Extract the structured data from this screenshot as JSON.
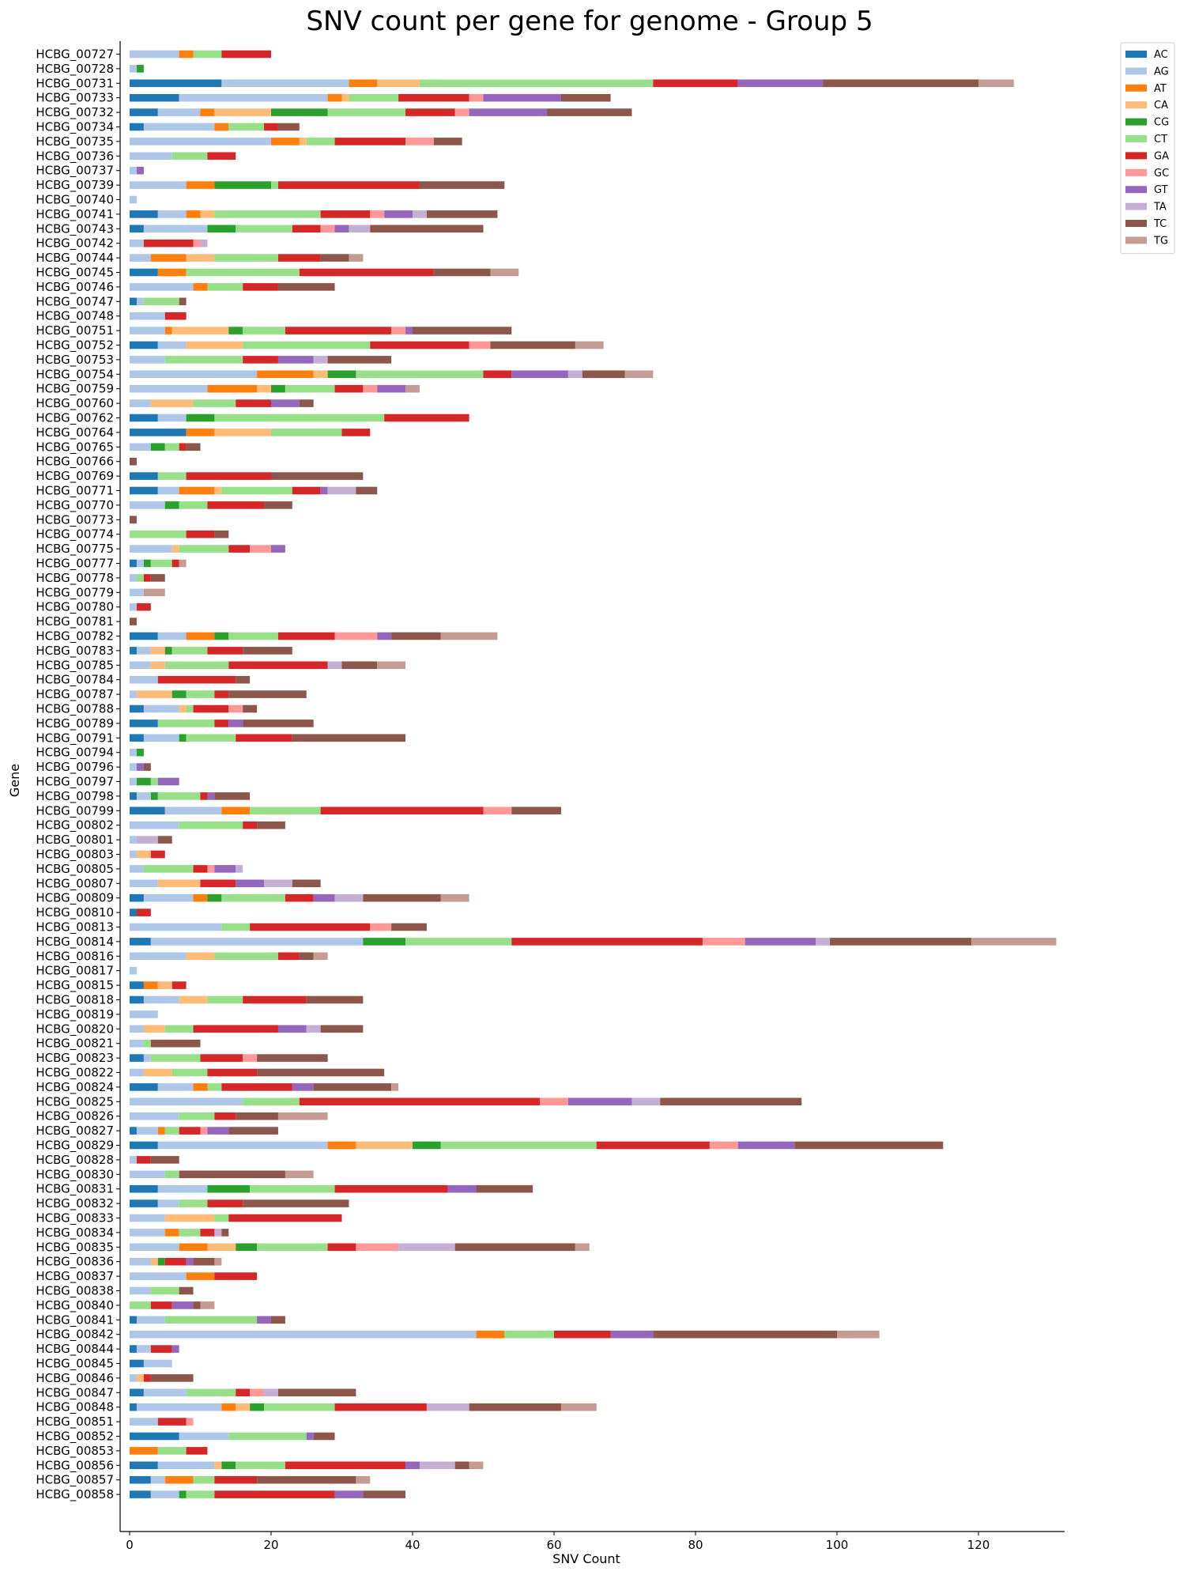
{
  "chart_data": {
    "type": "bar",
    "orientation": "horizontal",
    "stacked": true,
    "title": "SNV count per gene for genome - Group 5",
    "xlabel": "SNV Count",
    "ylabel": "Gene",
    "xlim": [
      -1.2,
      132.3
    ],
    "xticks": [
      0,
      20,
      40,
      60,
      80,
      100,
      120
    ],
    "legend_position": "upper right, outside plot",
    "grid": false,
    "series": [
      {
        "name": "AC",
        "color": "#1f77b4"
      },
      {
        "name": "AG",
        "color": "#aec7e8"
      },
      {
        "name": "AT",
        "color": "#ff7f0e"
      },
      {
        "name": "CA",
        "color": "#ffbb78"
      },
      {
        "name": "CG",
        "color": "#2ca02c"
      },
      {
        "name": "CT",
        "color": "#98df8a"
      },
      {
        "name": "GA",
        "color": "#d62728"
      },
      {
        "name": "GC",
        "color": "#ff9896"
      },
      {
        "name": "GT",
        "color": "#9467bd"
      },
      {
        "name": "TA",
        "color": "#c5b0d5"
      },
      {
        "name": "TC",
        "color": "#8c564b"
      },
      {
        "name": "TG",
        "color": "#c49c94"
      }
    ],
    "categories": [
      "HCBG_00727",
      "HCBG_00728",
      "HCBG_00731",
      "HCBG_00733",
      "HCBG_00732",
      "HCBG_00734",
      "HCBG_00735",
      "HCBG_00736",
      "HCBG_00737",
      "HCBG_00739",
      "HCBG_00740",
      "HCBG_00741",
      "HCBG_00743",
      "HCBG_00742",
      "HCBG_00744",
      "HCBG_00745",
      "HCBG_00746",
      "HCBG_00747",
      "HCBG_00748",
      "HCBG_00751",
      "HCBG_00752",
      "HCBG_00753",
      "HCBG_00754",
      "HCBG_00759",
      "HCBG_00760",
      "HCBG_00762",
      "HCBG_00764",
      "HCBG_00765",
      "HCBG_00766",
      "HCBG_00769",
      "HCBG_00771",
      "HCBG_00770",
      "HCBG_00773",
      "HCBG_00774",
      "HCBG_00775",
      "HCBG_00777",
      "HCBG_00778",
      "HCBG_00779",
      "HCBG_00780",
      "HCBG_00781",
      "HCBG_00782",
      "HCBG_00783",
      "HCBG_00785",
      "HCBG_00784",
      "HCBG_00787",
      "HCBG_00788",
      "HCBG_00789",
      "HCBG_00791",
      "HCBG_00794",
      "HCBG_00796",
      "HCBG_00797",
      "HCBG_00798",
      "HCBG_00799",
      "HCBG_00802",
      "HCBG_00801",
      "HCBG_00803",
      "HCBG_00805",
      "HCBG_00807",
      "HCBG_00809",
      "HCBG_00810",
      "HCBG_00813",
      "HCBG_00814",
      "HCBG_00816",
      "HCBG_00817",
      "HCBG_00815",
      "HCBG_00818",
      "HCBG_00819",
      "HCBG_00820",
      "HCBG_00821",
      "HCBG_00823",
      "HCBG_00822",
      "HCBG_00824",
      "HCBG_00825",
      "HCBG_00826",
      "HCBG_00827",
      "HCBG_00829",
      "HCBG_00828",
      "HCBG_00830",
      "HCBG_00831",
      "HCBG_00832",
      "HCBG_00833",
      "HCBG_00834",
      "HCBG_00835",
      "HCBG_00836",
      "HCBG_00837",
      "HCBG_00838",
      "HCBG_00840",
      "HCBG_00841",
      "HCBG_00842",
      "HCBG_00844",
      "HCBG_00845",
      "HCBG_00846",
      "HCBG_00847",
      "HCBG_00848",
      "HCBG_00851",
      "HCBG_00852",
      "HCBG_00853",
      "HCBG_00856",
      "HCBG_00857",
      "HCBG_00858"
    ],
    "values": [
      [
        0,
        7,
        2,
        0,
        0,
        4,
        7,
        0,
        0,
        0,
        0,
        0
      ],
      [
        0,
        1,
        0,
        0,
        1,
        0,
        0,
        0,
        0,
        0,
        0,
        0
      ],
      [
        13,
        18,
        4,
        6,
        0,
        33,
        12,
        0,
        12,
        0,
        22,
        5
      ],
      [
        7,
        21,
        2,
        1,
        0,
        7,
        10,
        2,
        11,
        0,
        7,
        0
      ],
      [
        4,
        6,
        2,
        8,
        8,
        11,
        7,
        2,
        11,
        0,
        12,
        0
      ],
      [
        2,
        10,
        2,
        0,
        0,
        5,
        2,
        0,
        0,
        0,
        3,
        0
      ],
      [
        0,
        20,
        4,
        1,
        0,
        4,
        10,
        4,
        0,
        0,
        4,
        0
      ],
      [
        0,
        6,
        0,
        0,
        0,
        5,
        4,
        0,
        0,
        0,
        0,
        0
      ],
      [
        0,
        1,
        0,
        0,
        0,
        0,
        0,
        0,
        1,
        0,
        0,
        0
      ],
      [
        0,
        8,
        4,
        0,
        8,
        1,
        20,
        0,
        0,
        0,
        12,
        0
      ],
      [
        0,
        1,
        0,
        0,
        0,
        0,
        0,
        0,
        0,
        0,
        0,
        0
      ],
      [
        4,
        4,
        2,
        2,
        0,
        15,
        7,
        2,
        4,
        2,
        10,
        0
      ],
      [
        2,
        9,
        0,
        0,
        4,
        8,
        4,
        2,
        2,
        3,
        16,
        0
      ],
      [
        0,
        2,
        0,
        0,
        0,
        0,
        7,
        1,
        0,
        1,
        0,
        0
      ],
      [
        0,
        3,
        5,
        4,
        0,
        9,
        6,
        0,
        0,
        0,
        4,
        2
      ],
      [
        4,
        0,
        4,
        0,
        0,
        16,
        19,
        0,
        0,
        0,
        8,
        4
      ],
      [
        0,
        9,
        2,
        0,
        0,
        5,
        5,
        0,
        0,
        0,
        8,
        0
      ],
      [
        1,
        1,
        0,
        0,
        0,
        5,
        0,
        0,
        0,
        0,
        1,
        0
      ],
      [
        0,
        5,
        0,
        0,
        0,
        0,
        3,
        0,
        0,
        0,
        0,
        0
      ],
      [
        0,
        5,
        1,
        8,
        2,
        6,
        15,
        2,
        1,
        0,
        14,
        0
      ],
      [
        4,
        4,
        0,
        8,
        0,
        18,
        14,
        3,
        0,
        0,
        12,
        4
      ],
      [
        0,
        5,
        0,
        0,
        0,
        11,
        5,
        0,
        5,
        2,
        9,
        0
      ],
      [
        0,
        18,
        8,
        2,
        4,
        18,
        4,
        0,
        8,
        2,
        6,
        4
      ],
      [
        0,
        11,
        7,
        2,
        2,
        7,
        4,
        2,
        4,
        0,
        0,
        2
      ],
      [
        0,
        3,
        0,
        6,
        0,
        6,
        5,
        0,
        4,
        0,
        2,
        0
      ],
      [
        4,
        4,
        0,
        0,
        4,
        24,
        12,
        0,
        0,
        0,
        0,
        0
      ],
      [
        8,
        0,
        4,
        8,
        0,
        10,
        4,
        0,
        0,
        0,
        0,
        0
      ],
      [
        0,
        3,
        0,
        0,
        2,
        2,
        1,
        0,
        0,
        0,
        2,
        0
      ],
      [
        0,
        0,
        0,
        0,
        0,
        0,
        0,
        0,
        0,
        0,
        1,
        0
      ],
      [
        4,
        0,
        0,
        0,
        0,
        4,
        12,
        0,
        0,
        0,
        13,
        0
      ],
      [
        4,
        3,
        5,
        1,
        0,
        10,
        4,
        0,
        1,
        4,
        3,
        0
      ],
      [
        0,
        5,
        0,
        0,
        2,
        4,
        8,
        0,
        0,
        0,
        4,
        0
      ],
      [
        0,
        0,
        0,
        0,
        0,
        0,
        0,
        0,
        0,
        0,
        1,
        0
      ],
      [
        0,
        0,
        0,
        0,
        0,
        8,
        4,
        0,
        0,
        0,
        2,
        0
      ],
      [
        0,
        6,
        0,
        1,
        0,
        7,
        3,
        3,
        2,
        0,
        0,
        0
      ],
      [
        1,
        1,
        0,
        0,
        1,
        3,
        1,
        0,
        0,
        0,
        0,
        1
      ],
      [
        0,
        1,
        0,
        0,
        0,
        1,
        1,
        0,
        0,
        0,
        2,
        0
      ],
      [
        0,
        2,
        0,
        0,
        0,
        0,
        0,
        0,
        0,
        0,
        0,
        3
      ],
      [
        0,
        1,
        0,
        0,
        0,
        0,
        2,
        0,
        0,
        0,
        0,
        0
      ],
      [
        0,
        0,
        0,
        0,
        0,
        0,
        0,
        0,
        0,
        0,
        1,
        0
      ],
      [
        4,
        4,
        4,
        0,
        2,
        7,
        8,
        6,
        2,
        0,
        7,
        8
      ],
      [
        1,
        2,
        0,
        2,
        1,
        5,
        5,
        0,
        0,
        0,
        7,
        0
      ],
      [
        0,
        3,
        0,
        2,
        0,
        9,
        14,
        0,
        0,
        2,
        5,
        4
      ],
      [
        0,
        4,
        0,
        0,
        0,
        0,
        11,
        0,
        0,
        0,
        2,
        0
      ],
      [
        0,
        1,
        0,
        5,
        2,
        4,
        2,
        0,
        0,
        0,
        11,
        0
      ],
      [
        2,
        5,
        0,
        1,
        0,
        1,
        5,
        2,
        0,
        0,
        2,
        0
      ],
      [
        4,
        0,
        0,
        0,
        0,
        8,
        2,
        0,
        2,
        0,
        10,
        0
      ],
      [
        2,
        5,
        0,
        0,
        1,
        7,
        8,
        0,
        0,
        0,
        16,
        0
      ],
      [
        0,
        1,
        0,
        0,
        1,
        0,
        0,
        0,
        0,
        0,
        0,
        0
      ],
      [
        0,
        1,
        0,
        0,
        0,
        0,
        0,
        0,
        1,
        0,
        1,
        0
      ],
      [
        0,
        1,
        0,
        0,
        2,
        1,
        0,
        0,
        3,
        0,
        0,
        0
      ],
      [
        1,
        2,
        0,
        0,
        1,
        6,
        1,
        0,
        1,
        0,
        5,
        0
      ],
      [
        5,
        8,
        4,
        0,
        0,
        10,
        23,
        4,
        0,
        0,
        7,
        0
      ],
      [
        0,
        7,
        0,
        0,
        0,
        9,
        2,
        0,
        0,
        0,
        4,
        0
      ],
      [
        0,
        1,
        0,
        0,
        0,
        0,
        0,
        0,
        0,
        3,
        2,
        0
      ],
      [
        0,
        1,
        0,
        2,
        0,
        0,
        2,
        0,
        0,
        0,
        0,
        0
      ],
      [
        0,
        2,
        0,
        0,
        0,
        7,
        2,
        1,
        3,
        1,
        0,
        0
      ],
      [
        0,
        4,
        0,
        6,
        0,
        0,
        5,
        0,
        4,
        4,
        4,
        0
      ],
      [
        2,
        7,
        2,
        0,
        2,
        9,
        4,
        0,
        3,
        4,
        11,
        4
      ],
      [
        1,
        0,
        0,
        0,
        0,
        0,
        2,
        0,
        0,
        0,
        0,
        0
      ],
      [
        0,
        13,
        0,
        0,
        0,
        4,
        17,
        3,
        0,
        0,
        5,
        0
      ],
      [
        3,
        30,
        0,
        0,
        6,
        15,
        27,
        6,
        10,
        2,
        20,
        12
      ],
      [
        0,
        8,
        0,
        4,
        0,
        9,
        3,
        0,
        0,
        0,
        2,
        2
      ],
      [
        0,
        1,
        0,
        0,
        0,
        0,
        0,
        0,
        0,
        0,
        0,
        0
      ],
      [
        2,
        0,
        2,
        2,
        0,
        0,
        2,
        0,
        0,
        0,
        0,
        0
      ],
      [
        2,
        5,
        0,
        4,
        0,
        5,
        9,
        0,
        0,
        0,
        8,
        0
      ],
      [
        0,
        4,
        0,
        0,
        0,
        0,
        0,
        0,
        0,
        0,
        0,
        0
      ],
      [
        0,
        2,
        0,
        3,
        0,
        4,
        12,
        0,
        4,
        2,
        6,
        0
      ],
      [
        0,
        2,
        0,
        0,
        0,
        1,
        0,
        0,
        0,
        0,
        7,
        0
      ],
      [
        2,
        1,
        0,
        0,
        0,
        7,
        6,
        2,
        0,
        0,
        10,
        0
      ],
      [
        0,
        2,
        0,
        4,
        0,
        5,
        7,
        0,
        0,
        0,
        18,
        0
      ],
      [
        4,
        5,
        2,
        0,
        0,
        2,
        10,
        0,
        3,
        0,
        11,
        1
      ],
      [
        0,
        16,
        0,
        0,
        0,
        8,
        34,
        4,
        9,
        4,
        20,
        0
      ],
      [
        0,
        7,
        0,
        0,
        0,
        5,
        3,
        0,
        0,
        0,
        6,
        7
      ],
      [
        1,
        3,
        1,
        0,
        0,
        2,
        3,
        1,
        3,
        0,
        7,
        0
      ],
      [
        4,
        24,
        4,
        8,
        4,
        22,
        16,
        4,
        8,
        0,
        21,
        0
      ],
      [
        0,
        1,
        0,
        0,
        0,
        0,
        2,
        0,
        0,
        0,
        4,
        0
      ],
      [
        0,
        5,
        0,
        0,
        0,
        2,
        0,
        0,
        0,
        0,
        15,
        4
      ],
      [
        4,
        7,
        0,
        0,
        6,
        12,
        16,
        0,
        4,
        0,
        8,
        0
      ],
      [
        4,
        3,
        0,
        0,
        0,
        4,
        5,
        0,
        0,
        0,
        15,
        0
      ],
      [
        0,
        5,
        0,
        7,
        0,
        2,
        16,
        0,
        0,
        0,
        0,
        0
      ],
      [
        0,
        5,
        2,
        0,
        0,
        3,
        2,
        0,
        0,
        1,
        1,
        0
      ],
      [
        0,
        7,
        4,
        4,
        3,
        10,
        4,
        6,
        0,
        8,
        17,
        2
      ],
      [
        0,
        3,
        0,
        1,
        1,
        0,
        3,
        0,
        1,
        0,
        3,
        1
      ],
      [
        0,
        8,
        4,
        0,
        0,
        0,
        6,
        0,
        0,
        0,
        0,
        0
      ],
      [
        0,
        3,
        0,
        0,
        0,
        4,
        0,
        0,
        0,
        0,
        2,
        0
      ],
      [
        0,
        0,
        0,
        0,
        0,
        3,
        3,
        0,
        3,
        0,
        1,
        2
      ],
      [
        1,
        4,
        0,
        0,
        0,
        13,
        0,
        0,
        2,
        0,
        2,
        0
      ],
      [
        0,
        49,
        4,
        0,
        0,
        7,
        8,
        0,
        6,
        0,
        26,
        6
      ],
      [
        1,
        2,
        0,
        0,
        0,
        0,
        3,
        0,
        1,
        0,
        0,
        0
      ],
      [
        2,
        4,
        0,
        0,
        0,
        0,
        0,
        0,
        0,
        0,
        0,
        0
      ],
      [
        0,
        1,
        0,
        1,
        0,
        0,
        1,
        0,
        0,
        0,
        6,
        0
      ],
      [
        2,
        6,
        0,
        0,
        0,
        7,
        2,
        2,
        0,
        2,
        11,
        0
      ],
      [
        1,
        12,
        2,
        2,
        2,
        10,
        13,
        0,
        0,
        6,
        13,
        5
      ],
      [
        0,
        4,
        0,
        0,
        0,
        0,
        4,
        1,
        0,
        0,
        0,
        0
      ],
      [
        7,
        7,
        0,
        0,
        0,
        11,
        0,
        0,
        1,
        0,
        3,
        0
      ],
      [
        0,
        0,
        4,
        0,
        0,
        4,
        3,
        0,
        0,
        0,
        0,
        0
      ],
      [
        4,
        8,
        0,
        1,
        2,
        7,
        17,
        0,
        2,
        5,
        2,
        2
      ],
      [
        3,
        2,
        4,
        0,
        0,
        3,
        6,
        0,
        0,
        0,
        14,
        2
      ],
      [
        3,
        4,
        0,
        0,
        1,
        4,
        17,
        0,
        4,
        0,
        6,
        0
      ]
    ]
  }
}
